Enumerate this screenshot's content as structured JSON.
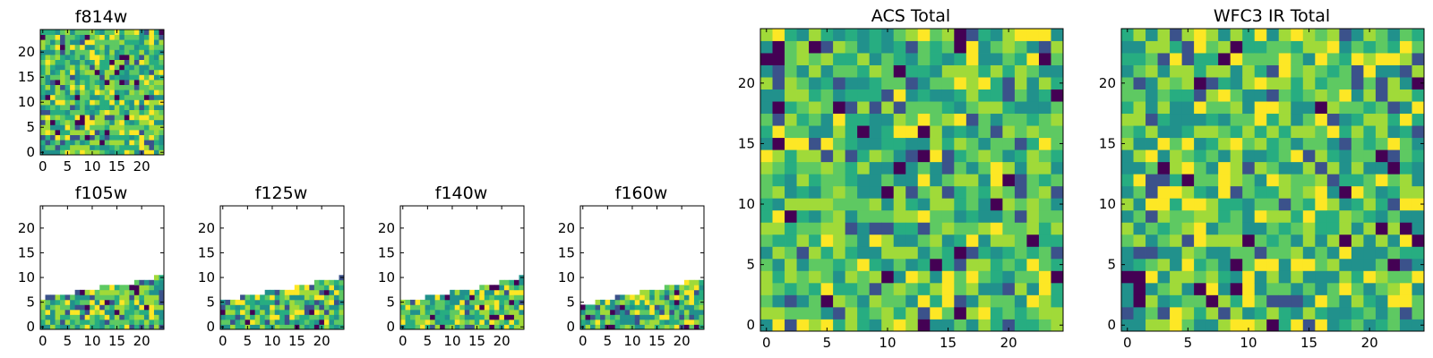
{
  "chart_data": [
    {
      "type": "heatmap",
      "title": "f814w",
      "grid": [
        25,
        25
      ],
      "fill_rows": "full",
      "xticks": [
        "0",
        "5",
        "10",
        "15",
        "20"
      ],
      "yticks": [
        "0",
        "5",
        "10",
        "15",
        "20"
      ],
      "xlim": [
        0,
        25
      ],
      "ylim": [
        0,
        25
      ],
      "colormap": "viridis",
      "seed": 11
    },
    {
      "type": "heatmap",
      "title": "f105w",
      "grid": [
        25,
        25
      ],
      "fill_rows": [
        6,
        7,
        7,
        7,
        7,
        7,
        7,
        8,
        8,
        8,
        8,
        8,
        9,
        9,
        9,
        9,
        9,
        9,
        9,
        10,
        10,
        10,
        10,
        11,
        11
      ],
      "xticks": [
        "0",
        "5",
        "10",
        "15",
        "20"
      ],
      "yticks": [
        "0",
        "5",
        "10",
        "15",
        "20"
      ],
      "xlim": [
        0,
        25
      ],
      "ylim": [
        0,
        25
      ],
      "colormap": "viridis",
      "seed": 23
    },
    {
      "type": "heatmap",
      "title": "f125w",
      "grid": [
        25,
        25
      ],
      "fill_rows": [
        6,
        6,
        6,
        6,
        7,
        7,
        7,
        7,
        7,
        8,
        8,
        8,
        8,
        8,
        8,
        9,
        9,
        9,
        9,
        10,
        10,
        10,
        10,
        10,
        11
      ],
      "xticks": [
        "0",
        "5",
        "10",
        "15",
        "20"
      ],
      "yticks": [
        "0",
        "5",
        "10",
        "15",
        "20"
      ],
      "xlim": [
        0,
        25
      ],
      "ylim": [
        0,
        25
      ],
      "colormap": "viridis",
      "seed": 37
    },
    {
      "type": "heatmap",
      "title": "f140w",
      "grid": [
        25,
        25
      ],
      "fill_rows": [
        6,
        6,
        6,
        6,
        6,
        7,
        7,
        7,
        7,
        7,
        8,
        8,
        8,
        8,
        8,
        8,
        9,
        9,
        9,
        9,
        10,
        10,
        10,
        10,
        11
      ],
      "xticks": [
        "0",
        "5",
        "10",
        "15",
        "20"
      ],
      "yticks": [
        "0",
        "5",
        "10",
        "15",
        "20"
      ],
      "xlim": [
        0,
        25
      ],
      "ylim": [
        0,
        25
      ],
      "colormap": "viridis",
      "seed": 51
    },
    {
      "type": "heatmap",
      "title": "f160w",
      "grid": [
        25,
        25
      ],
      "fill_rows": [
        5,
        5,
        5,
        6,
        6,
        6,
        6,
        7,
        7,
        7,
        7,
        7,
        8,
        8,
        8,
        8,
        8,
        9,
        9,
        9,
        9,
        10,
        10,
        10,
        10
      ],
      "xticks": [
        "0",
        "5",
        "10",
        "15",
        "20"
      ],
      "yticks": [
        "0",
        "5",
        "10",
        "15",
        "20"
      ],
      "xlim": [
        0,
        25
      ],
      "ylim": [
        0,
        25
      ],
      "colormap": "viridis",
      "seed": 67
    },
    {
      "type": "heatmap",
      "title": "ACS Total",
      "grid": [
        25,
        25
      ],
      "fill_rows": "full",
      "xticks": [
        "0",
        "5",
        "10",
        "15",
        "20"
      ],
      "yticks": [
        "0",
        "5",
        "10",
        "15",
        "20"
      ],
      "xlim": [
        0,
        25
      ],
      "ylim": [
        0,
        25
      ],
      "colormap": "viridis",
      "seed": 83
    },
    {
      "type": "heatmap",
      "title": "WFC3 IR Total",
      "grid": [
        25,
        25
      ],
      "fill_rows": "full",
      "xticks": [
        "0",
        "5",
        "10",
        "15",
        "20"
      ],
      "yticks": [
        "0",
        "5",
        "10",
        "15",
        "20"
      ],
      "xlim": [
        0,
        25
      ],
      "ylim": [
        0,
        25
      ],
      "colormap": "viridis",
      "seed": 97
    }
  ],
  "colors": {
    "viridis": [
      "#440154",
      "#3b528b",
      "#21918c",
      "#27ad81",
      "#5ec962",
      "#a0da39",
      "#fde725"
    ],
    "axes": "#000000",
    "background": "#ffffff"
  }
}
